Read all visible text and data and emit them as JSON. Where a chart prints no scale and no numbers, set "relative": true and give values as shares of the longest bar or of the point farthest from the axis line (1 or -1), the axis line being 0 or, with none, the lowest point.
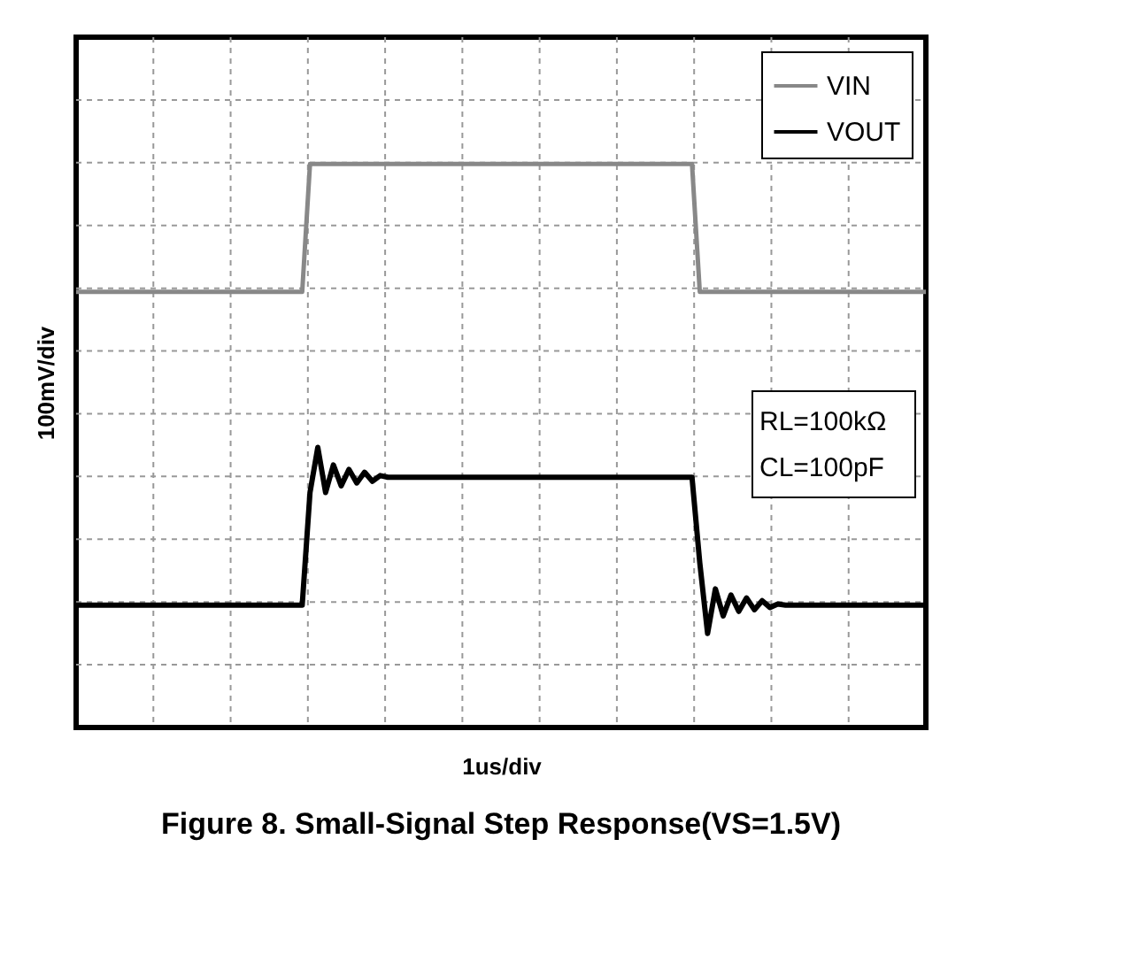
{
  "chart_data": {
    "type": "line",
    "relative": true,
    "title": "Figure 8. Small-Signal Step Response(VS=1.5V)",
    "xlabel": "1us/div",
    "ylabel": "100mV/div",
    "categories": [
      null,
      null,
      null,
      null,
      null,
      null,
      null,
      null,
      null,
      null,
      null,
      null,
      null,
      null,
      null,
      null,
      null,
      null,
      null,
      null,
      null,
      null,
      null,
      null,
      null,
      null,
      null,
      null,
      null,
      null,
      null,
      null,
      null,
      null,
      null,
      null,
      null,
      null,
      null,
      null,
      null,
      null,
      null,
      null,
      null,
      null,
      null,
      null,
      null,
      null,
      null,
      null,
      null,
      null,
      null,
      null,
      null,
      null,
      null,
      null,
      null,
      null,
      null,
      null,
      null,
      null,
      null,
      null,
      null,
      null,
      null,
      null,
      null,
      null,
      null,
      null,
      null,
      null,
      null,
      null,
      null,
      null,
      null,
      null,
      null,
      null,
      null,
      null,
      null,
      null,
      null,
      null,
      null,
      null,
      null,
      null,
      null,
      null,
      null,
      null,
      null,
      null,
      null,
      null,
      null,
      null,
      null,
      null,
      null,
      null
    ],
    "grid": true,
    "legend": "top right",
    "series": [
      {
        "name": "VIN",
        "color": "#888888",
        "values": [
          0.773,
          0.773,
          0.773,
          0.773,
          0.773,
          0.773,
          0.773,
          0.773,
          0.773,
          0.773,
          0.773,
          0.773,
          0.773,
          0.773,
          0.773,
          0.773,
          0.773,
          0.773,
          0.773,
          0.773,
          0.773,
          0.773,
          0.773,
          0.773,
          0.773,
          0.773,
          0.773,
          0.773,
          0.773,
          0.773,
          1,
          1,
          1,
          1,
          1,
          1,
          1,
          1,
          1,
          1,
          1,
          1,
          1,
          1,
          1,
          1,
          1,
          1,
          1,
          1,
          1,
          1,
          1,
          1,
          1,
          1,
          1,
          1,
          1,
          1,
          1,
          1,
          1,
          1,
          1,
          1,
          1,
          1,
          1,
          1,
          1,
          1,
          1,
          1,
          1,
          1,
          1,
          1,
          1,
          1,
          0.773,
          0.773,
          0.773,
          0.773,
          0.773,
          0.773,
          0.773,
          0.773,
          0.773,
          0.773,
          0.773,
          0.773,
          0.773,
          0.773,
          0.773,
          0.773,
          0.773,
          0.773,
          0.773,
          0.773,
          0.773,
          0.773,
          0.773,
          0.773,
          0.773,
          0.773,
          0.773,
          0.773,
          0.773,
          0.773
        ]
      },
      {
        "name": "VOUT",
        "color": "#000000",
        "values": [
          0.217,
          0.217,
          0.217,
          0.217,
          0.217,
          0.217,
          0.217,
          0.217,
          0.217,
          0.217,
          0.217,
          0.217,
          0.217,
          0.217,
          0.217,
          0.217,
          0.217,
          0.217,
          0.217,
          0.217,
          0.217,
          0.217,
          0.217,
          0.217,
          0.217,
          0.217,
          0.217,
          0.217,
          0.217,
          0.217,
          0.417,
          0.497,
          0.417,
          0.466,
          0.429,
          0.458,
          0.434,
          0.453,
          0.437,
          0.447,
          0.444,
          0.444,
          0.444,
          0.444,
          0.444,
          0.444,
          0.444,
          0.444,
          0.444,
          0.444,
          0.444,
          0.444,
          0.444,
          0.444,
          0.444,
          0.444,
          0.444,
          0.444,
          0.444,
          0.444,
          0.444,
          0.444,
          0.444,
          0.444,
          0.444,
          0.444,
          0.444,
          0.444,
          0.444,
          0.444,
          0.444,
          0.444,
          0.444,
          0.444,
          0.444,
          0.444,
          0.444,
          0.444,
          0.444,
          0.444,
          0.292,
          0.167,
          0.246,
          0.198,
          0.235,
          0.206,
          0.23,
          0.209,
          0.225,
          0.213,
          0.219,
          0.217,
          0.217,
          0.217,
          0.217,
          0.217,
          0.217,
          0.217,
          0.217,
          0.217,
          0.217,
          0.217,
          0.217,
          0.217,
          0.217,
          0.217,
          0.217,
          0.217,
          0.217,
          0.217
        ]
      }
    ],
    "annotations": [
      "RL=100kΩ",
      "CL=100pF"
    ]
  }
}
